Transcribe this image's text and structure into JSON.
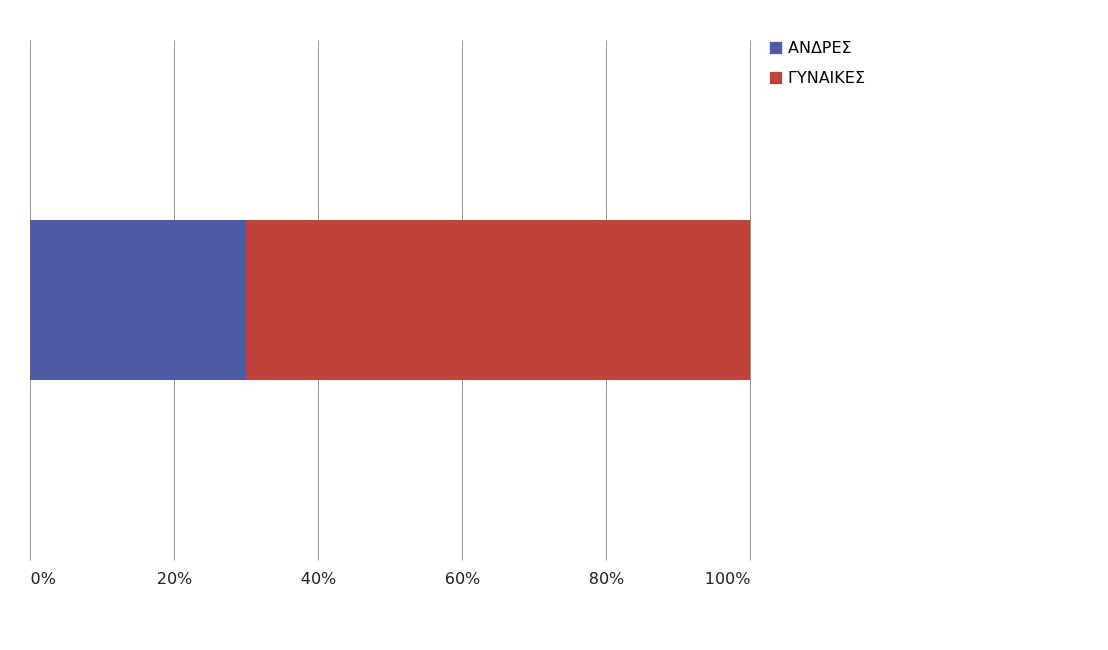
{
  "chart_data": {
    "type": "bar",
    "orientation": "horizontal",
    "stacked": true,
    "categories": [
      null
    ],
    "series": [
      {
        "name": "ΑΝΔΡΕΣ",
        "color": "#4f5ba6",
        "values": [
          30
        ]
      },
      {
        "name": "ΓΥΝΑΙΚΕΣ",
        "color": "#c0433a",
        "values": [
          70
        ]
      }
    ],
    "xlim": [
      0,
      100
    ],
    "xticks": [
      {
        "value": 0,
        "label": "0%"
      },
      {
        "value": 20,
        "label": "20%"
      },
      {
        "value": 40,
        "label": "40%"
      },
      {
        "value": 60,
        "label": "60%"
      },
      {
        "value": 80,
        "label": "80%"
      },
      {
        "value": 100,
        "label": "100%"
      }
    ],
    "grid": "x",
    "legend": "right",
    "tick_labels": "x"
  }
}
